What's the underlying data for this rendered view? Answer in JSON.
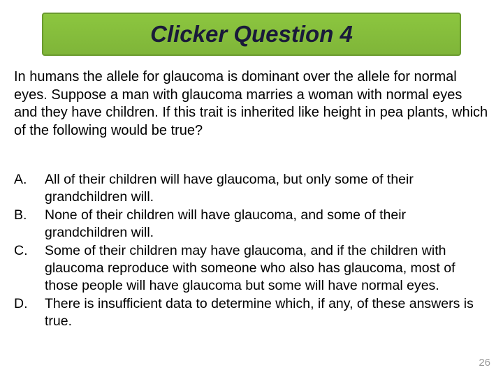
{
  "title": "Clicker Question 4",
  "question": "In humans the allele for glaucoma is dominant over the allele for normal eyes. Suppose a man with glaucoma marries a woman with normal eyes and they have children. If this trait is inherited like height in pea plants, which of the following would be true?",
  "options": [
    {
      "letter": "A.",
      "text": "All of their children will have glaucoma, but only some of their grandchildren will."
    },
    {
      "letter": "B.",
      "text": "None of their children will have glaucoma, and some of their grandchildren will."
    },
    {
      "letter": "C.",
      "text": "Some of their children may have glaucoma, and if the children with glaucoma reproduce with someone who also has glaucoma, most of those people will have glaucoma but some will have normal eyes."
    },
    {
      "letter": "D.",
      "text": "There is insufficient data to determine which, if any, of these answers is true."
    }
  ],
  "page_number": "26",
  "colors": {
    "title_bg_top": "#8cc63f",
    "title_bg_bottom": "#7fb539",
    "title_border": "#6a9a2e",
    "title_text": "#1a1a3a",
    "body_text": "#000000",
    "page_num": "#999999",
    "background": "#ffffff"
  }
}
